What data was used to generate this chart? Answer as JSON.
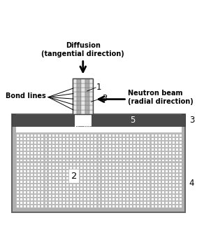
{
  "bg_color": "#ffffff",
  "fig_width": 2.92,
  "fig_height": 3.24,
  "dpi": 100,
  "vessel_wall_color": "#888888",
  "vessel_outer_color": "#999999",
  "vessel_inner_bg": "#ffffff",
  "dark_plate_color": "#555555",
  "silica_bg_color": "#bbbbbb",
  "silica_dot_color": "#ffffff",
  "sample_col_light": "#e8e8e8",
  "sample_col_dark": "#aaaaaa",
  "sample_line_color": "#777777",
  "label_fontsize": 7.0,
  "number_fontsize": 8.5,
  "diffusion_text": "Diffusion\n(tangential direction)",
  "bond_lines_text": "Bond lines",
  "neutron_text": "Neutron beam\n(radial direction)",
  "label1": "1",
  "label2": "2",
  "label3": "3",
  "label4": "4",
  "label5": "5"
}
